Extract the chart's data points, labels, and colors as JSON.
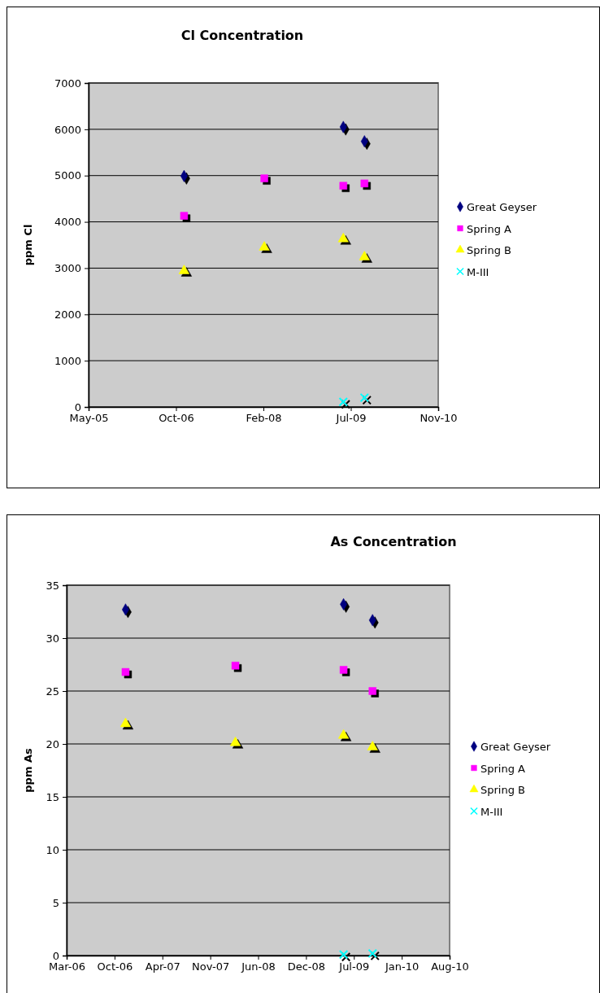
{
  "chart_data": [
    {
      "type": "scatter",
      "title": "Cl Concentration",
      "ylabel": "ppm Cl",
      "xlim": [
        "2005-05-28",
        "2010-11-18"
      ],
      "xticks": [
        {
          "value": "2005-05-28",
          "label": "May-05"
        },
        {
          "value": "2006-10-10",
          "label": "Oct-06"
        },
        {
          "value": "2008-02-22",
          "label": "Feb-08"
        },
        {
          "value": "2009-07-06",
          "label": "Jul-09"
        },
        {
          "value": "2010-11-18",
          "label": "Nov-10"
        }
      ],
      "ylim": [
        0,
        7000
      ],
      "yticks": [
        0,
        1000,
        2000,
        3000,
        4000,
        5000,
        6000,
        7000
      ],
      "grid": "y",
      "legend": "right",
      "series": [
        {
          "name": "Great Geyser",
          "color": "#000080",
          "marker": "diamond",
          "x": [
            "2006-11-25",
            "2009-05-24",
            "2009-09-22"
          ],
          "values": [
            4990,
            6050,
            5740
          ]
        },
        {
          "name": "Spring A",
          "color": "#ff00ff",
          "marker": "square",
          "x": [
            "2006-11-25",
            "2008-02-27",
            "2009-05-24",
            "2009-09-22"
          ],
          "values": [
            4130,
            4940,
            4780,
            4830
          ]
        },
        {
          "name": "Spring B",
          "color": "#ffff00",
          "marker": "triangle",
          "x": [
            "2006-11-25",
            "2008-02-27",
            "2009-05-24",
            "2009-09-22"
          ],
          "values": [
            2940,
            3450,
            3630,
            3240
          ]
        },
        {
          "name": "M-III",
          "color": "#00ffff",
          "marker": "cross",
          "x": [
            "2009-05-24",
            "2009-09-22"
          ],
          "values": [
            110,
            200
          ]
        }
      ]
    },
    {
      "type": "scatter",
      "title": "As Concentration",
      "ylabel": "ppm As",
      "xlim": [
        "2006-03-24",
        "2010-08-10"
      ],
      "xticks": [
        {
          "value": "2006-03-24",
          "label": "Mar-06"
        },
        {
          "value": "2006-10-10",
          "label": "Oct-06"
        },
        {
          "value": "2007-04-28",
          "label": "Apr-07"
        },
        {
          "value": "2007-11-14",
          "label": "Nov-07"
        },
        {
          "value": "2008-06-01",
          "label": "Jun-08"
        },
        {
          "value": "2008-12-18",
          "label": "Dec-08"
        },
        {
          "value": "2009-07-06",
          "label": "Jul-09"
        },
        {
          "value": "2010-01-22",
          "label": "Jan-10"
        },
        {
          "value": "2010-08-10",
          "label": "Aug-10"
        }
      ],
      "ylim": [
        0,
        35
      ],
      "yticks": [
        0,
        5,
        10,
        15,
        20,
        25,
        30,
        35
      ],
      "grid": "y",
      "legend": "right",
      "series": [
        {
          "name": "Great Geyser",
          "color": "#000080",
          "marker": "diamond",
          "x": [
            "2006-11-25",
            "2009-05-24",
            "2009-09-22"
          ],
          "values": [
            32.7,
            33.2,
            31.7
          ]
        },
        {
          "name": "Spring A",
          "color": "#ff00ff",
          "marker": "square",
          "x": [
            "2006-11-25",
            "2008-02-27",
            "2009-05-24",
            "2009-09-22"
          ],
          "values": [
            26.8,
            27.4,
            27.0,
            25.0
          ]
        },
        {
          "name": "Spring B",
          "color": "#ffff00",
          "marker": "triangle",
          "x": [
            "2006-11-25",
            "2008-02-27",
            "2009-05-24",
            "2009-09-22"
          ],
          "values": [
            21.9,
            20.1,
            20.8,
            19.7
          ]
        },
        {
          "name": "M-III",
          "color": "#00ffff",
          "marker": "cross",
          "x": [
            "2009-05-24",
            "2009-09-22"
          ],
          "values": [
            0.1,
            0.2
          ]
        }
      ]
    }
  ]
}
